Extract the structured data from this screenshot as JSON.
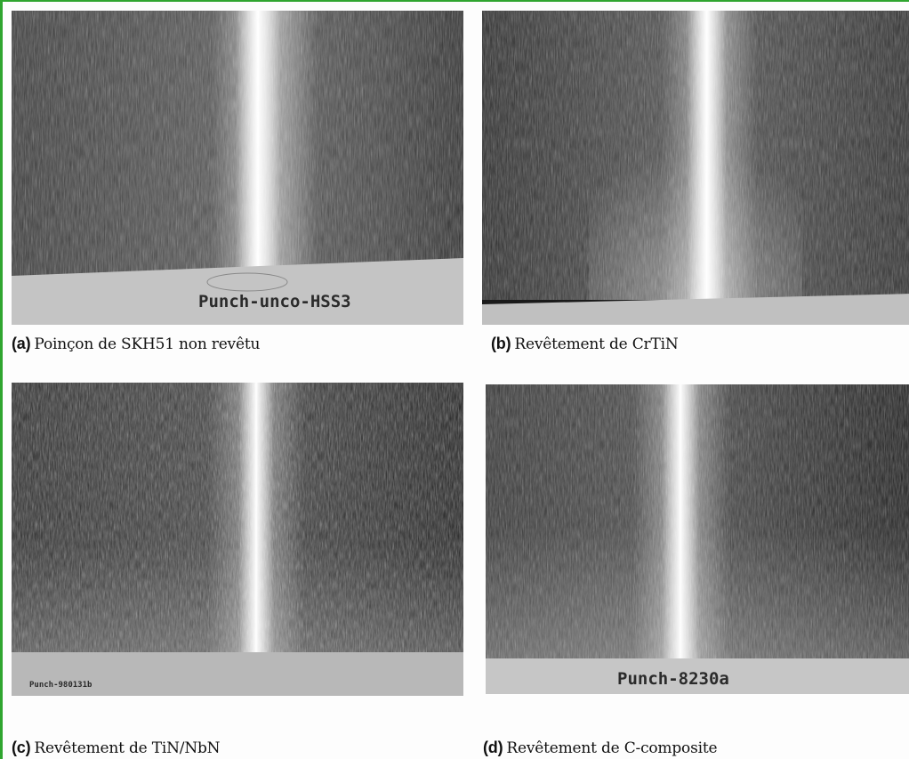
{
  "panels": [
    {
      "id": "a",
      "tag": "(a)",
      "caption": "Poinçon de SKH51 non revêtu",
      "plate_label": "Punch-unco-HSS3"
    },
    {
      "id": "b",
      "tag": "(b)",
      "caption": "Revêtement de CrTiN",
      "plate_label": ""
    },
    {
      "id": "c",
      "tag": "(c)",
      "caption": "Revêtement de TiN/NbN",
      "plate_label": "Punch-980131b"
    },
    {
      "id": "d",
      "tag": "(d)",
      "caption": "Revêtement de C-composite",
      "plate_label": "Punch-8230a"
    }
  ],
  "colors": {
    "frame_border": "#2fa52f",
    "metal_dark": "#1a1a1a",
    "streak_bright": "#ffffff",
    "plate": "#c4c4c4"
  }
}
